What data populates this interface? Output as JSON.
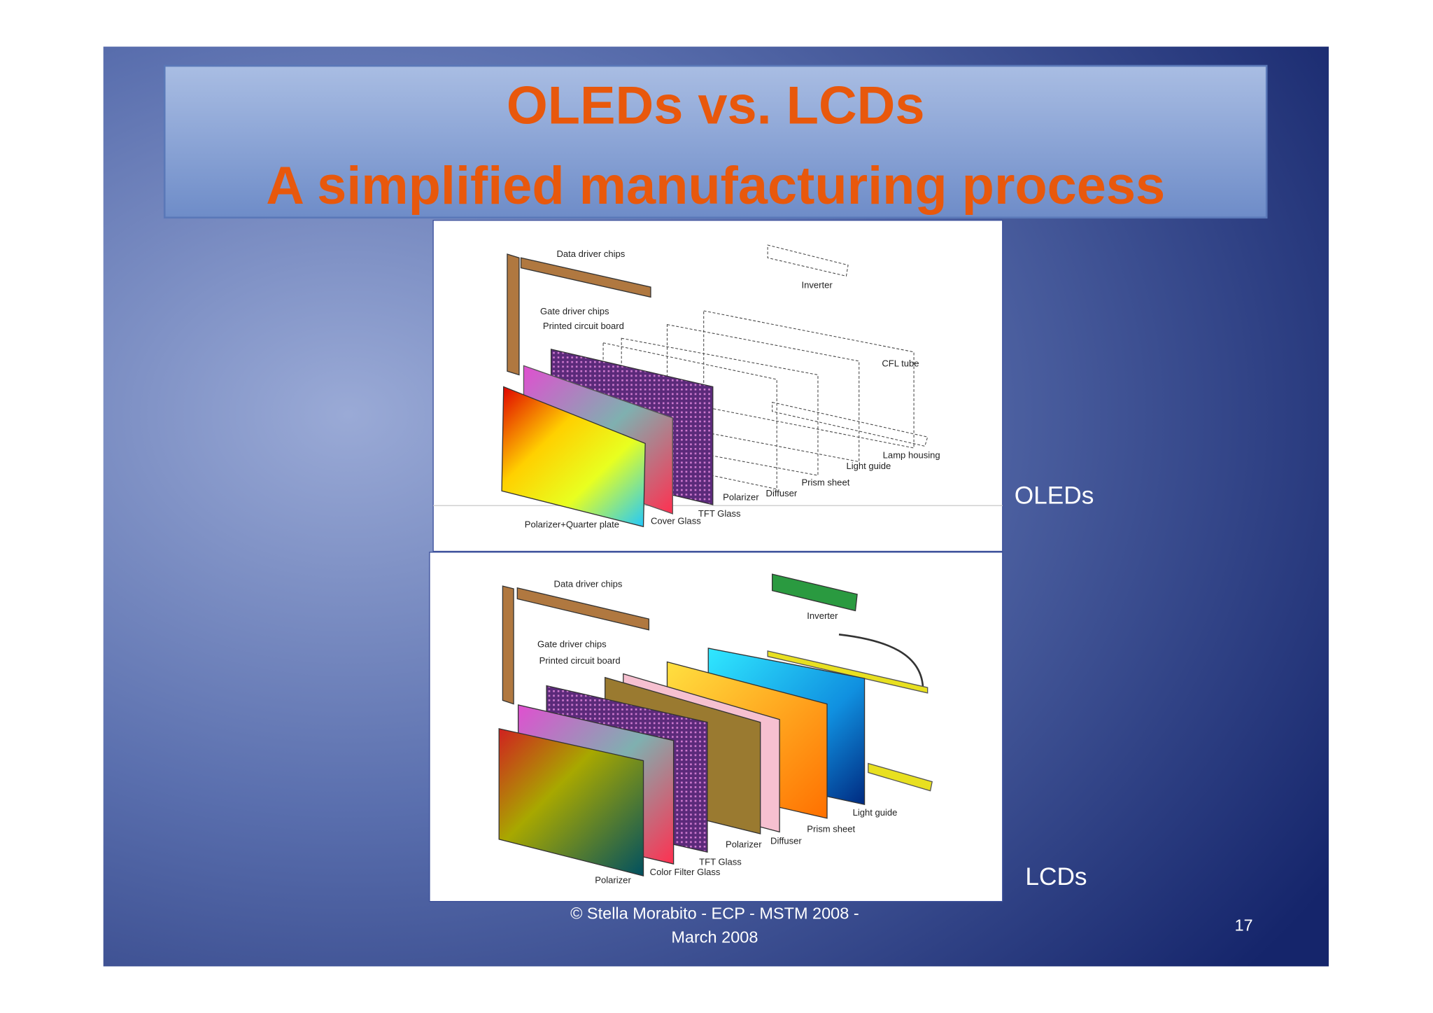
{
  "slide": {
    "title": [
      "OLEDs vs. LCDs",
      "A simplified manufacturing process"
    ],
    "figures": [
      {
        "caption": "OLEDs",
        "labels": [
          "Data driver chips",
          "Gate driver chips",
          "Printed circuit board",
          "Inverter",
          "CFL tube",
          "Lamp housing",
          "Light guide",
          "Prism sheet",
          "Diffuser",
          "Polarizer",
          "TFT Glass",
          "Cover Glass",
          "Polarizer+Quarter plate"
        ]
      },
      {
        "caption": "LCDs",
        "labels": [
          "Data driver chips",
          "Inverter",
          "Gate driver chips",
          "Printed circuit board",
          "Light guide",
          "Prism sheet",
          "Polarizer",
          "Diffuser",
          "TFT Glass",
          "Color Filter Glass",
          "Polarizer"
        ]
      }
    ],
    "footer": [
      "© Stella Morabito - ECP - MSTM 2008 -",
      "March 2008"
    ],
    "page_number": "17"
  }
}
